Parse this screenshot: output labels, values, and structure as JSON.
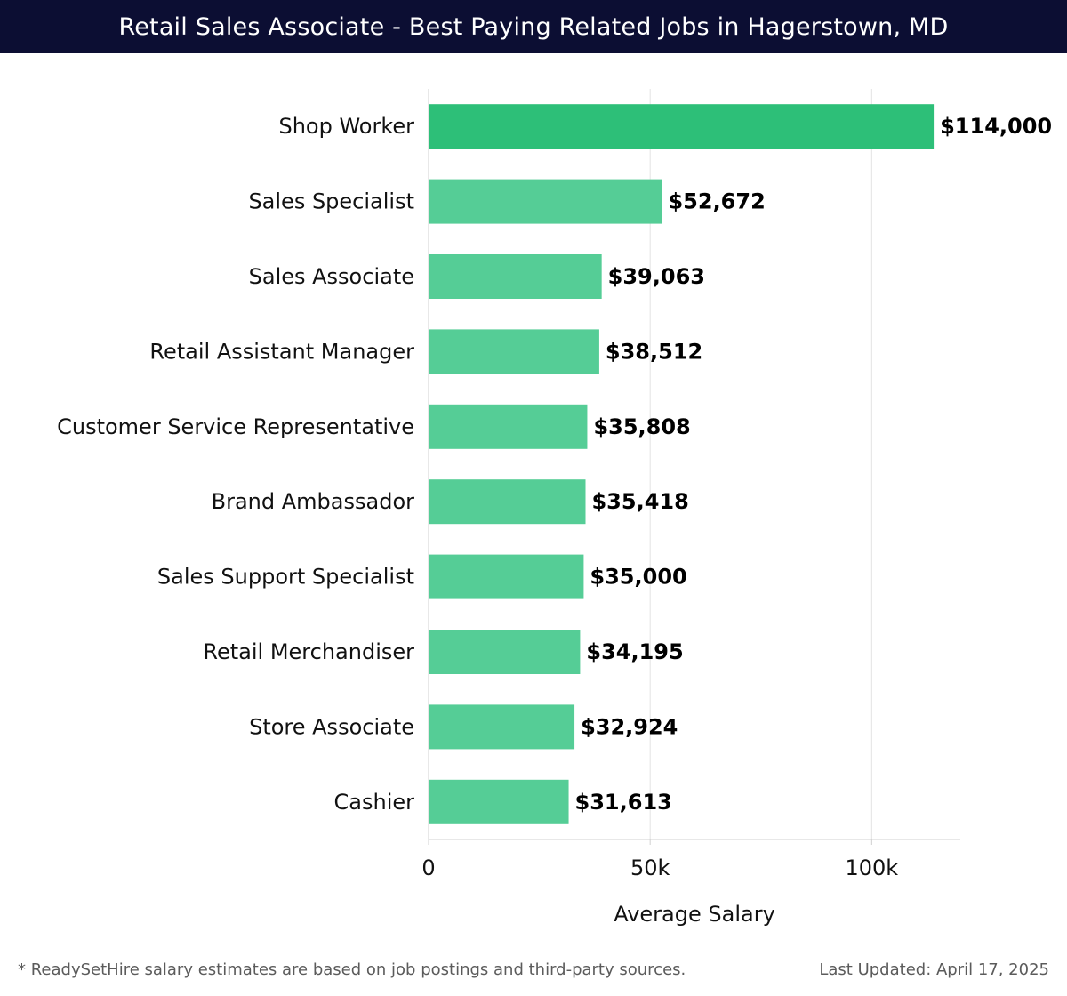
{
  "chart_data": {
    "type": "bar",
    "orientation": "horizontal",
    "title": "Retail Sales Associate - Best Paying Related Jobs in Hagerstown, MD",
    "xlabel": "Average Salary",
    "ylabel": "",
    "xlim": [
      0,
      120000
    ],
    "x_ticks": [
      0,
      50000,
      100000
    ],
    "x_tick_labels": [
      "0",
      "50k",
      "100k"
    ],
    "grid": true,
    "categories": [
      "Shop Worker",
      "Sales Specialist",
      "Sales Associate",
      "Retail Assistant Manager",
      "Customer Service Representative",
      "Brand Ambassador",
      "Sales Support Specialist",
      "Retail Merchandiser",
      "Store Associate",
      "Cashier"
    ],
    "values": [
      114000,
      52672,
      39063,
      38512,
      35808,
      35418,
      35000,
      34195,
      32924,
      31613
    ],
    "value_labels": [
      "$114,000",
      "$52,672",
      "$39,063",
      "$38,512",
      "$35,808",
      "$35,418",
      "$35,000",
      "$34,195",
      "$32,924",
      "$31,613"
    ],
    "colors": {
      "highlight": "#2dbf78",
      "bar": "#55cd96"
    }
  },
  "header": {
    "title": "Retail Sales Associate - Best Paying Related Jobs in Hagerstown, MD",
    "background": "#0c0e33"
  },
  "footer": {
    "note": "* ReadySetHire salary estimates are based on job postings and third-party sources.",
    "updated": "Last Updated: April 17, 2025"
  }
}
